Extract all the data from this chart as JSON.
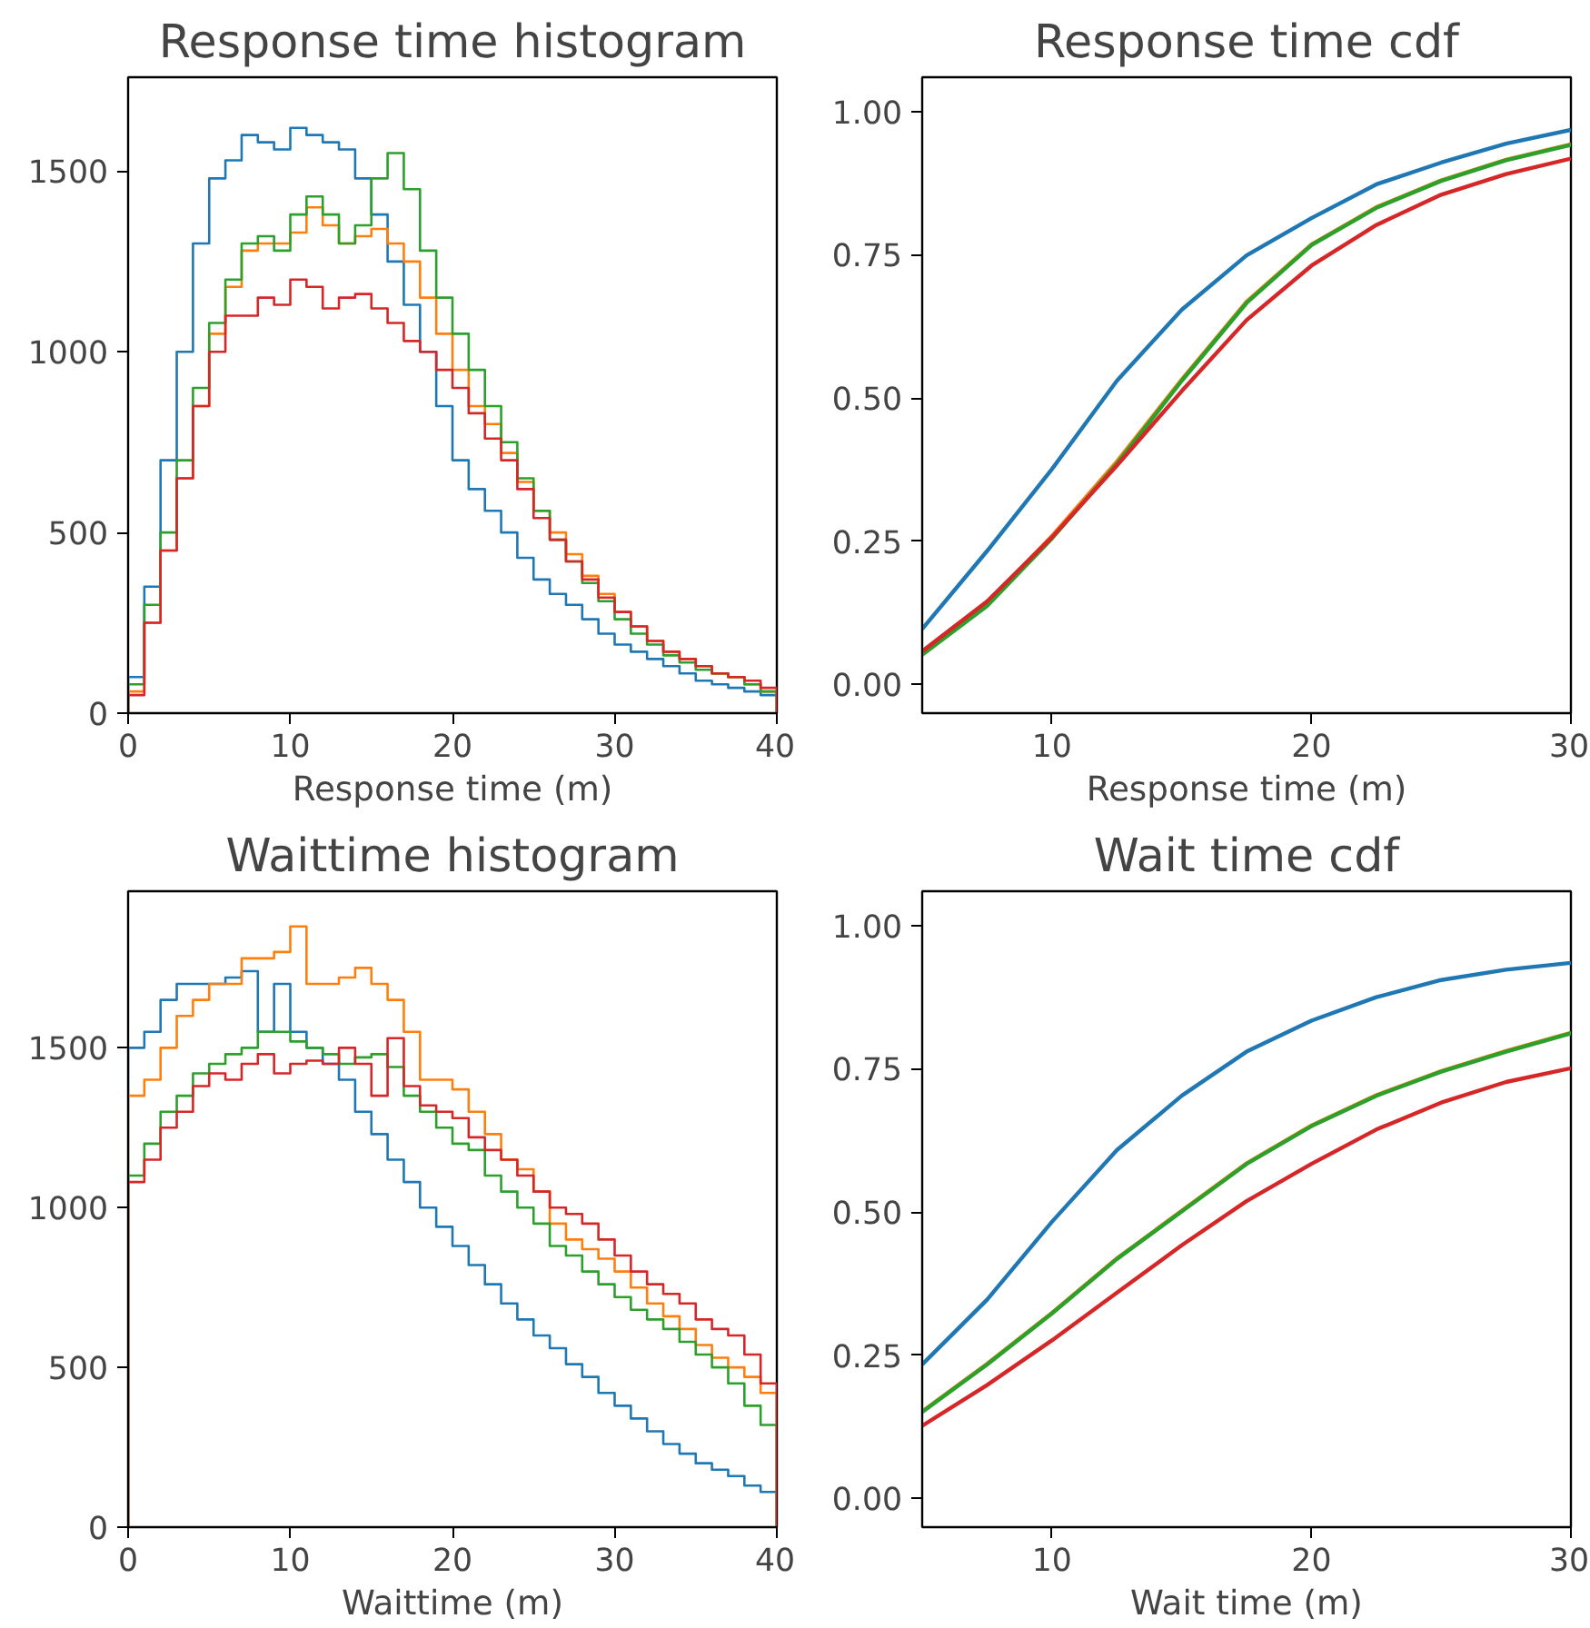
{
  "chart_data": [
    {
      "type": "histogram",
      "title": "Response time histogram",
      "xlabel": "Response time (m)",
      "xlim": [
        0,
        40
      ],
      "ylim": [
        0,
        1760
      ],
      "xticks": [
        0,
        10,
        20,
        30,
        40
      ],
      "yticks": [
        0,
        500,
        1000,
        1500
      ],
      "grid": false,
      "bins": [
        0,
        1,
        2,
        3,
        4,
        5,
        6,
        7,
        8,
        9,
        10,
        11,
        12,
        13,
        14,
        15,
        16,
        17,
        18,
        19,
        20,
        21,
        22,
        23,
        24,
        25,
        26,
        27,
        28,
        29,
        30,
        31,
        32,
        33,
        34,
        35,
        36,
        37,
        38,
        39,
        40
      ],
      "series": [
        {
          "color": "#1f77b4",
          "values": [
            100,
            350,
            700,
            1000,
            1300,
            1480,
            1530,
            1600,
            1580,
            1560,
            1620,
            1600,
            1580,
            1560,
            1480,
            1380,
            1250,
            1130,
            1000,
            850,
            700,
            620,
            560,
            500,
            430,
            370,
            330,
            300,
            260,
            220,
            190,
            170,
            150,
            130,
            110,
            90,
            80,
            70,
            60,
            50
          ]
        },
        {
          "color": "#ff7f0e",
          "values": [
            60,
            250,
            450,
            650,
            850,
            1050,
            1180,
            1280,
            1300,
            1300,
            1330,
            1400,
            1350,
            1300,
            1320,
            1340,
            1300,
            1250,
            1150,
            1050,
            950,
            850,
            800,
            720,
            640,
            560,
            500,
            440,
            380,
            330,
            280,
            240,
            200,
            170,
            150,
            130,
            110,
            100,
            80,
            60
          ]
        },
        {
          "color": "#2ca02c",
          "values": [
            80,
            300,
            500,
            700,
            900,
            1080,
            1200,
            1300,
            1320,
            1280,
            1380,
            1430,
            1380,
            1300,
            1350,
            1480,
            1550,
            1450,
            1280,
            1150,
            1050,
            950,
            850,
            750,
            650,
            560,
            480,
            420,
            360,
            310,
            260,
            220,
            190,
            160,
            140,
            120,
            110,
            100,
            80,
            60
          ]
        },
        {
          "color": "#d62728",
          "values": [
            50,
            250,
            450,
            650,
            850,
            1000,
            1100,
            1100,
            1150,
            1130,
            1200,
            1180,
            1120,
            1150,
            1160,
            1120,
            1080,
            1030,
            1000,
            950,
            900,
            830,
            760,
            700,
            620,
            540,
            480,
            420,
            370,
            320,
            280,
            240,
            200,
            170,
            150,
            130,
            110,
            100,
            90,
            70
          ]
        }
      ]
    },
    {
      "type": "line",
      "title": "Response time cdf",
      "xlabel": "Response time (m)",
      "xlim": [
        5,
        30
      ],
      "ylim": [
        -0.05,
        1.06
      ],
      "xticks": [
        10,
        20,
        30
      ],
      "yticks": [
        {
          "value": 0,
          "label": "0.00"
        },
        {
          "value": 0.25,
          "label": "0.25"
        },
        {
          "value": 0.5,
          "label": "0.50"
        },
        {
          "value": 0.75,
          "label": "0.75"
        },
        {
          "value": 1,
          "label": "1.00"
        }
      ],
      "grid": false,
      "x": [
        5,
        7.5,
        10,
        12.5,
        15,
        17.5,
        20,
        22.5,
        25,
        27.5,
        30
      ],
      "series": [
        {
          "color": "#1f77b4",
          "values": [
            0.097,
            0.233,
            0.376,
            0.53,
            0.654,
            0.749,
            0.814,
            0.873,
            0.911,
            0.944,
            0.968
          ]
        },
        {
          "color": "#ff7f0e",
          "values": [
            0.055,
            0.141,
            0.259,
            0.389,
            0.532,
            0.668,
            0.768,
            0.833,
            0.88,
            0.916,
            0.943
          ]
        },
        {
          "color": "#2ca02c",
          "values": [
            0.052,
            0.137,
            0.255,
            0.385,
            0.53,
            0.666,
            0.767,
            0.832,
            0.879,
            0.915,
            0.942
          ]
        },
        {
          "color": "#d62728",
          "values": [
            0.058,
            0.145,
            0.257,
            0.382,
            0.512,
            0.636,
            0.731,
            0.802,
            0.855,
            0.891,
            0.918
          ]
        }
      ]
    },
    {
      "type": "histogram",
      "title": "Waittime histogram",
      "xlabel": "Waittime (m)",
      "xlim": [
        0,
        40
      ],
      "ylim": [
        0,
        1990
      ],
      "xticks": [
        0,
        10,
        20,
        30,
        40
      ],
      "yticks": [
        0,
        500,
        1000,
        1500
      ],
      "grid": false,
      "bins": [
        0,
        1,
        2,
        3,
        4,
        5,
        6,
        7,
        8,
        9,
        10,
        11,
        12,
        13,
        14,
        15,
        16,
        17,
        18,
        19,
        20,
        21,
        22,
        23,
        24,
        25,
        26,
        27,
        28,
        29,
        30,
        31,
        32,
        33,
        34,
        35,
        36,
        37,
        38,
        39,
        40
      ],
      "series": [
        {
          "color": "#1f77b4",
          "values": [
            1500,
            1550,
            1650,
            1700,
            1700,
            1700,
            1720,
            1740,
            1550,
            1700,
            1550,
            1500,
            1450,
            1400,
            1300,
            1230,
            1150,
            1080,
            1000,
            940,
            880,
            820,
            760,
            700,
            650,
            600,
            560,
            510,
            470,
            420,
            380,
            340,
            300,
            260,
            230,
            200,
            180,
            160,
            130,
            110
          ]
        },
        {
          "color": "#ff7f0e",
          "values": [
            1350,
            1400,
            1500,
            1600,
            1650,
            1700,
            1700,
            1780,
            1780,
            1800,
            1880,
            1700,
            1700,
            1720,
            1750,
            1700,
            1650,
            1550,
            1400,
            1400,
            1370,
            1300,
            1230,
            1150,
            1120,
            1050,
            950,
            900,
            870,
            840,
            800,
            750,
            700,
            660,
            620,
            570,
            530,
            500,
            470,
            420
          ]
        },
        {
          "color": "#2ca02c",
          "values": [
            1100,
            1200,
            1300,
            1350,
            1420,
            1450,
            1480,
            1500,
            1550,
            1550,
            1520,
            1500,
            1480,
            1450,
            1470,
            1480,
            1440,
            1350,
            1300,
            1250,
            1200,
            1180,
            1100,
            1050,
            1000,
            950,
            880,
            850,
            800,
            760,
            720,
            680,
            650,
            620,
            580,
            540,
            500,
            450,
            380,
            320
          ]
        },
        {
          "color": "#d62728",
          "values": [
            1080,
            1150,
            1250,
            1300,
            1380,
            1420,
            1400,
            1450,
            1480,
            1420,
            1450,
            1460,
            1450,
            1500,
            1450,
            1350,
            1530,
            1380,
            1320,
            1300,
            1280,
            1220,
            1180,
            1150,
            1100,
            1050,
            1000,
            980,
            950,
            900,
            850,
            800,
            760,
            730,
            700,
            650,
            620,
            600,
            540,
            450
          ]
        }
      ]
    },
    {
      "type": "line",
      "title": "Wait time cdf",
      "xlabel": "Wait time (m)",
      "xlim": [
        5,
        30
      ],
      "ylim": [
        -0.05,
        1.06
      ],
      "xticks": [
        10,
        20,
        30
      ],
      "yticks": [
        {
          "value": 0,
          "label": "0.00"
        },
        {
          "value": 0.25,
          "label": "0.25"
        },
        {
          "value": 0.5,
          "label": "0.50"
        },
        {
          "value": 0.75,
          "label": "0.75"
        },
        {
          "value": 1,
          "label": "1.00"
        }
      ],
      "grid": false,
      "x": [
        5,
        7.5,
        10,
        12.5,
        15,
        17.5,
        20,
        22.5,
        25,
        27.5,
        30
      ],
      "series": [
        {
          "color": "#1f77b4",
          "values": [
            0.234,
            0.347,
            0.483,
            0.608,
            0.703,
            0.78,
            0.834,
            0.875,
            0.905,
            0.923,
            0.935
          ]
        },
        {
          "color": "#ff7f0e",
          "values": [
            0.152,
            0.235,
            0.324,
            0.419,
            0.502,
            0.585,
            0.651,
            0.704,
            0.746,
            0.781,
            0.813
          ]
        },
        {
          "color": "#2ca02c",
          "values": [
            0.151,
            0.234,
            0.323,
            0.418,
            0.501,
            0.584,
            0.65,
            0.703,
            0.745,
            0.78,
            0.812
          ]
        },
        {
          "color": "#d62728",
          "values": [
            0.127,
            0.198,
            0.276,
            0.359,
            0.442,
            0.519,
            0.584,
            0.644,
            0.691,
            0.727,
            0.751
          ]
        }
      ]
    }
  ]
}
